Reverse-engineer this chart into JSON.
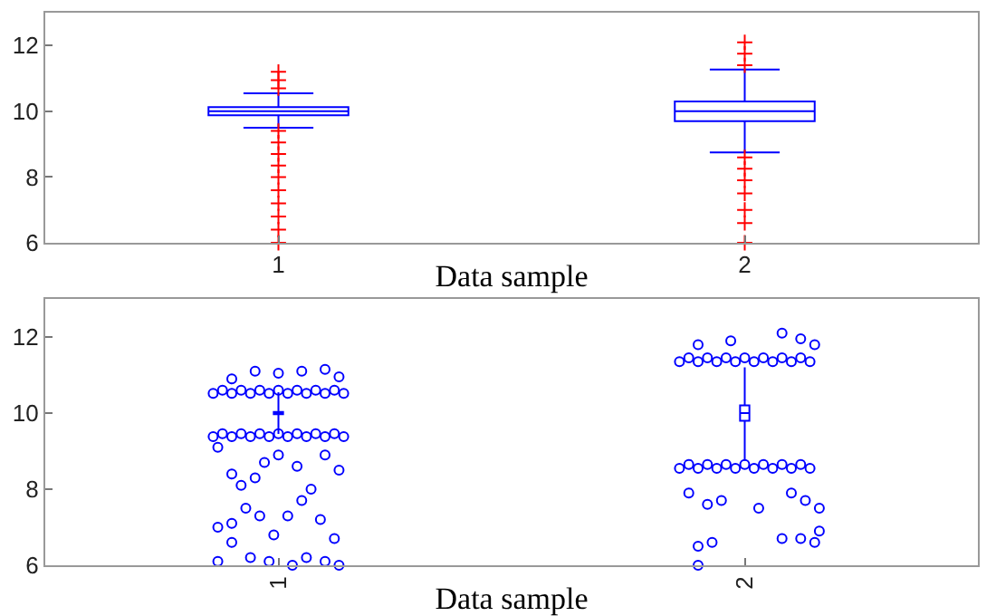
{
  "chart_data": [
    {
      "type": "box",
      "categories": [
        "1",
        "2"
      ],
      "xlabel": "Data sample",
      "ylim": [
        6,
        13
      ],
      "yticks": [
        6,
        8,
        10,
        12
      ],
      "grid": false,
      "marker": "cross",
      "series": [
        {
          "color": "#0000ff",
          "boxes": [
            {
              "low": 9.5,
              "q1": 9.88,
              "median": 10,
              "q3": 10.13,
              "high": 10.55
            },
            {
              "low": 8.75,
              "q1": 9.7,
              "median": 10,
              "q3": 10.3,
              "high": 11.27
            }
          ]
        },
        {
          "type": "scatter",
          "color": "#ff0000",
          "x": [
            "1",
            "1",
            "1",
            "1",
            "1",
            "1",
            "1",
            "1",
            "1",
            "1",
            "1",
            "1",
            "1",
            "2",
            "2",
            "2",
            "2",
            "2",
            "2",
            "2",
            "2",
            "2",
            "2"
          ],
          "values": [
            10.7,
            10.95,
            11.2,
            9.4,
            9.05,
            8.7,
            8.35,
            8.0,
            7.6,
            7.2,
            6.8,
            6.4,
            6.0,
            11.4,
            11.75,
            12.1,
            8.6,
            8.25,
            7.9,
            7.5,
            7.0,
            6.6,
            6.0
          ]
        }
      ]
    },
    {
      "type": "scatter",
      "xlabel": "Data sample",
      "xlim": [
        0.5,
        2.5
      ],
      "xticks": [
        {
          "value": 1,
          "label": "1"
        },
        {
          "value": 2,
          "label": "2"
        }
      ],
      "ylim": [
        6,
        13
      ],
      "yticks": [
        6,
        8,
        10,
        12
      ],
      "grid": false,
      "marker": "circle",
      "series": [
        {
          "color": "#0000ff",
          "x": [
            0.86,
            0.88,
            0.9,
            0.92,
            0.94,
            0.96,
            0.98,
            1.0,
            1.02,
            1.04,
            1.06,
            1.08,
            1.1,
            1.12,
            1.14,
            0.9,
            0.95,
            1.0,
            1.05,
            1.1,
            1.13,
            0.86,
            0.88,
            0.9,
            0.92,
            0.94,
            0.96,
            0.98,
            1.0,
            1.02,
            1.04,
            1.06,
            1.08,
            1.1,
            1.12,
            1.14,
            0.87,
            0.9,
            0.92,
            0.95,
            0.97,
            1.0,
            1.04,
            1.07,
            1.1,
            1.13,
            0.87,
            0.9,
            0.93,
            0.96,
            0.99,
            1.02,
            1.05,
            1.09,
            1.12,
            0.87,
            0.9,
            0.94,
            0.98,
            1.03,
            1.06,
            1.1,
            1.13
          ],
          "values": [
            10.52,
            10.6,
            10.52,
            10.6,
            10.52,
            10.6,
            10.52,
            10.6,
            10.52,
            10.6,
            10.52,
            10.6,
            10.52,
            10.6,
            10.52,
            10.9,
            11.1,
            11.05,
            11.1,
            11.15,
            10.95,
            9.38,
            9.46,
            9.38,
            9.46,
            9.38,
            9.46,
            9.38,
            9.46,
            9.38,
            9.46,
            9.38,
            9.46,
            9.38,
            9.46,
            9.38,
            9.1,
            8.4,
            8.1,
            8.3,
            8.7,
            8.9,
            8.6,
            8.0,
            8.9,
            8.5,
            7.0,
            7.1,
            7.5,
            7.3,
            6.8,
            7.3,
            7.7,
            7.2,
            6.7,
            6.1,
            6.6,
            6.2,
            6.1,
            6.0,
            6.2,
            6.1,
            6.0
          ]
        },
        {
          "color": "#0000ff",
          "x": [
            1.86,
            1.88,
            1.9,
            1.92,
            1.94,
            1.96,
            1.98,
            2.0,
            2.02,
            2.04,
            2.06,
            2.08,
            2.1,
            2.12,
            2.14,
            1.9,
            1.97,
            2.08,
            2.12,
            2.15,
            1.86,
            1.88,
            1.9,
            1.92,
            1.94,
            1.96,
            1.98,
            2.0,
            2.02,
            2.04,
            2.06,
            2.08,
            2.1,
            2.12,
            2.14,
            1.88,
            1.92,
            1.95,
            2.03,
            2.1,
            2.13,
            2.16,
            1.9,
            1.93,
            2.08,
            2.12,
            2.15,
            2.16,
            1.9
          ],
          "values": [
            11.35,
            11.45,
            11.35,
            11.45,
            11.35,
            11.45,
            11.35,
            11.45,
            11.35,
            11.45,
            11.35,
            11.45,
            11.35,
            11.45,
            11.35,
            11.8,
            11.9,
            12.1,
            11.95,
            11.8,
            8.55,
            8.65,
            8.55,
            8.65,
            8.55,
            8.65,
            8.55,
            8.65,
            8.55,
            8.65,
            8.55,
            8.65,
            8.55,
            8.65,
            8.55,
            7.9,
            7.6,
            7.7,
            7.5,
            7.9,
            7.7,
            7.5,
            6.5,
            6.6,
            6.7,
            6.7,
            6.6,
            6.9,
            6.0
          ]
        },
        {
          "type": "box",
          "color": "#0000ff",
          "x": [
            1,
            2
          ],
          "boxes": [
            {
              "low": 9.45,
              "q1": 9.97,
              "median": 10,
              "q3": 10.03,
              "high": 10.55
            },
            {
              "low": 8.75,
              "q1": 9.8,
              "median": 10,
              "q3": 10.2,
              "high": 11.2
            }
          ]
        }
      ]
    }
  ]
}
